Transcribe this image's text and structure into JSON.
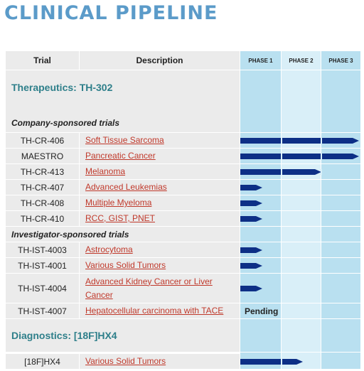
{
  "page": {
    "title": "CLINICAL PIPELINE"
  },
  "header": {
    "trial": "Trial",
    "description": "Description",
    "phase1": "PHASE 1",
    "phase2": "PHASE 2",
    "phase3": "PHASE 3"
  },
  "sections": {
    "therapeutics": "Therapeutics: TH-302",
    "company": "Company-sponsored trials",
    "investigator": "Investigator-sponsored trials",
    "diagnostics": "Diagnostics: [18F]HX4"
  },
  "rows": [
    {
      "trial": "TH-CR-406",
      "description": "Soft Tissue Sarcoma",
      "progress_phase": 3.0
    },
    {
      "trial": "MAESTRO",
      "description": "Pancreatic Cancer",
      "progress_phase": 3.0
    },
    {
      "trial": "TH-CR-413",
      "description": "Melanoma",
      "progress_phase": 2.0
    },
    {
      "trial": "TH-CR-407",
      "description": "Advanced Leukemias",
      "progress_phase": 0.55
    },
    {
      "trial": "TH-CR-408",
      "description": "Multiple Myeloma",
      "progress_phase": 0.55
    },
    {
      "trial": "TH-CR-410",
      "description": "RCC, GIST, PNET",
      "progress_phase": 0.55
    },
    {
      "trial": "TH-IST-4003",
      "description": "Astrocytoma",
      "progress_phase": 0.55
    },
    {
      "trial": "TH-IST-4001",
      "description": "Various Solid Tumors",
      "progress_phase": 0.55
    },
    {
      "trial": "TH-IST-4004",
      "description": "Advanced Kidney Cancer or Liver Cancer",
      "progress_phase": 0.55
    },
    {
      "trial": "TH-IST-4007",
      "description": "Hepatocellular carcinoma with TACE",
      "status": "Pending"
    },
    {
      "trial": "[18F]HX4",
      "description": "Various Solid Tumors",
      "progress_phase": 1.55
    }
  ],
  "colors": {
    "bar": "#0d2f86",
    "link": "#c0392b",
    "title": "#5b9bc9",
    "section": "#2e7f8a"
  }
}
